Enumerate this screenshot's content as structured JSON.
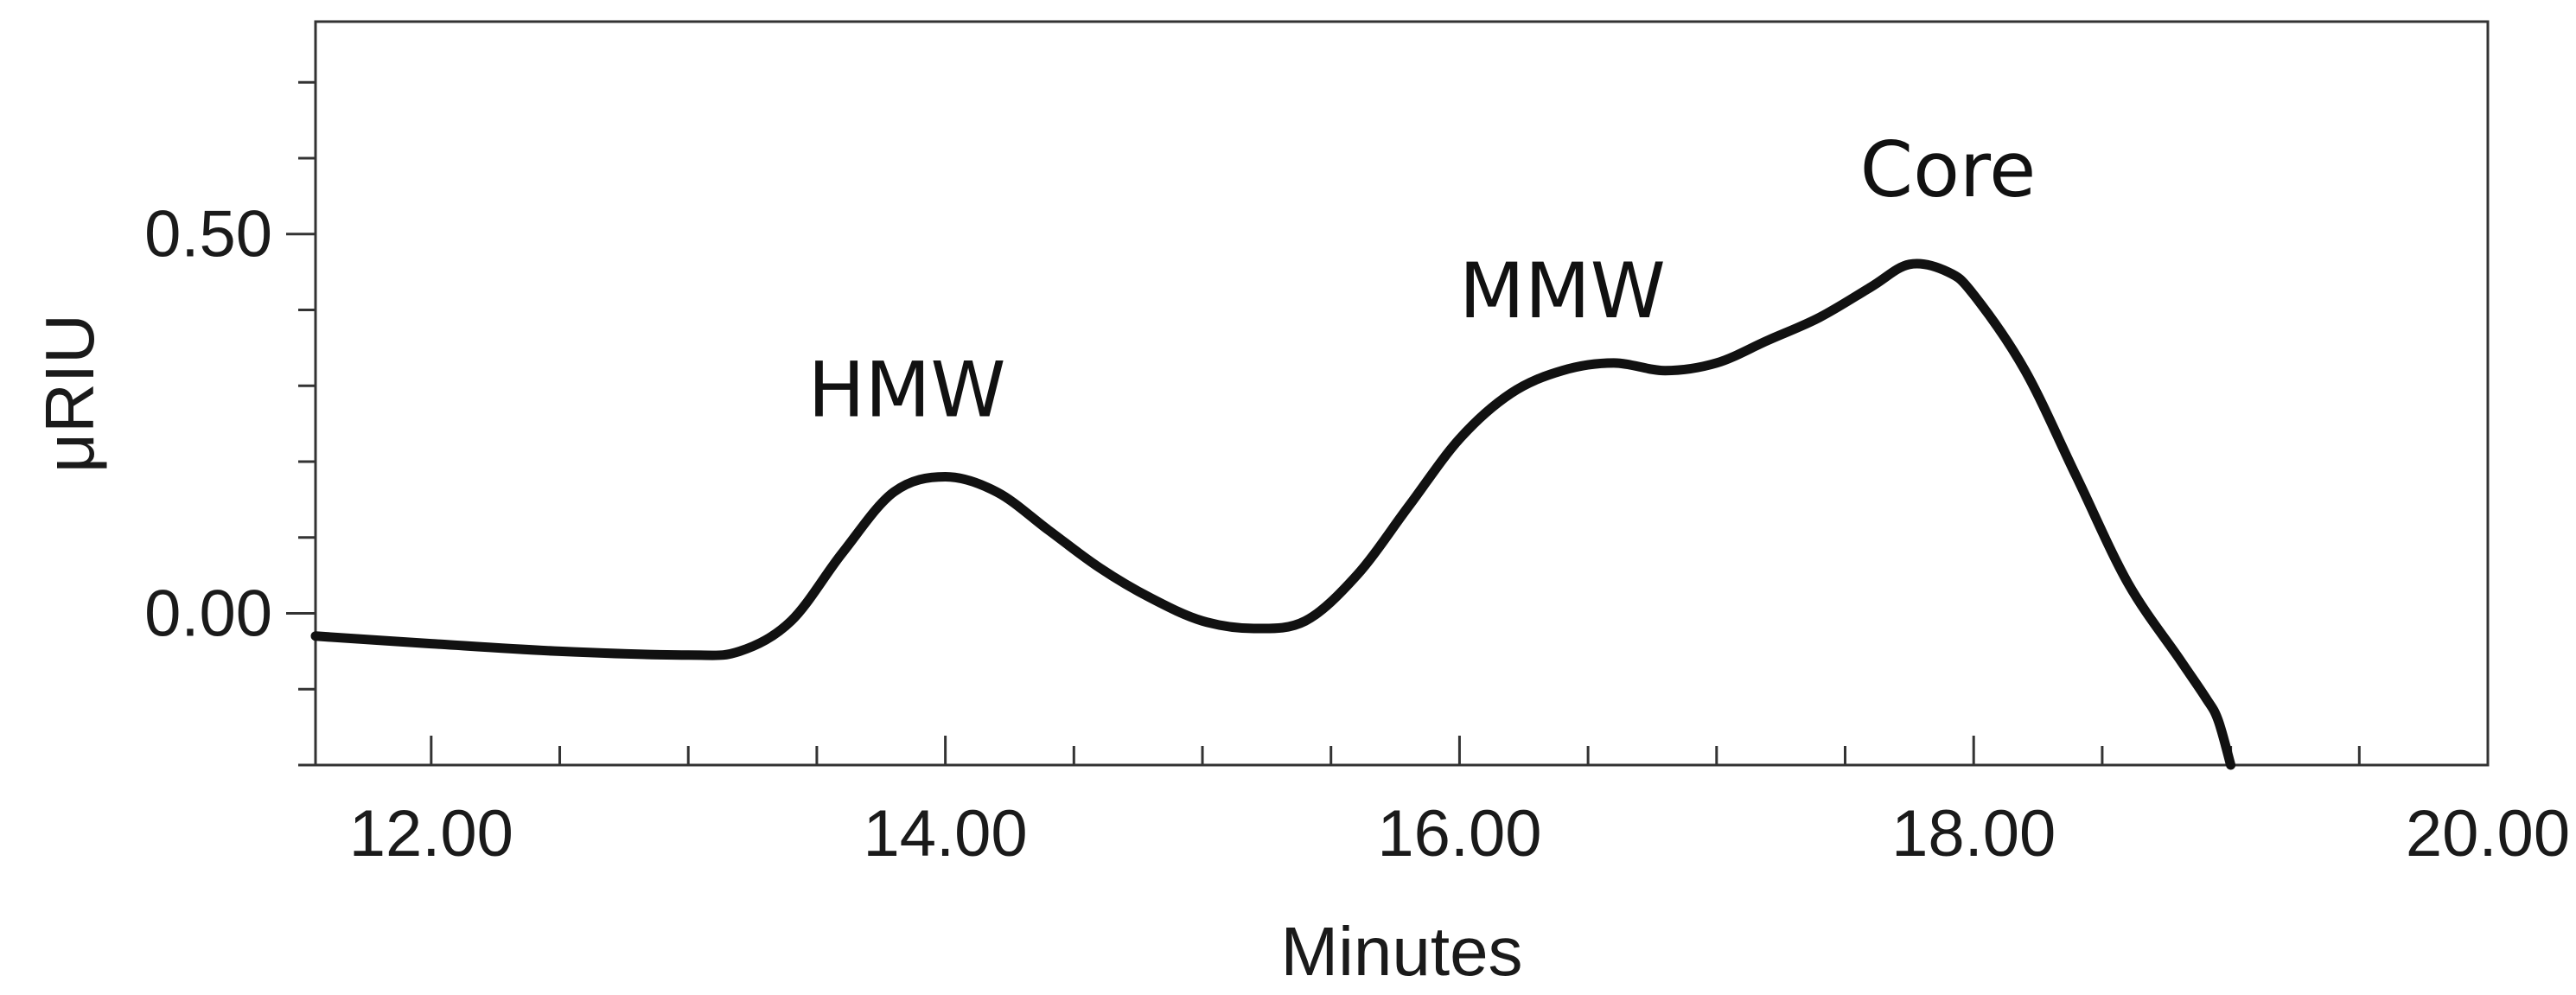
{
  "chart_data": {
    "type": "line",
    "title": "",
    "xlabel": "Minutes",
    "ylabel": "μRIU",
    "xlim": [
      11.55,
      20.0
    ],
    "ylim": [
      -0.2,
      0.78
    ],
    "x_ticks": [
      {
        "value": 12.0,
        "label": "12.00"
      },
      {
        "value": 14.0,
        "label": "14.00"
      },
      {
        "value": 16.0,
        "label": "16.00"
      },
      {
        "value": 18.0,
        "label": "18.00"
      },
      {
        "value": 20.0,
        "label": "20.00"
      }
    ],
    "x_minor_step": 0.5,
    "y_ticks": [
      {
        "value": 0.0,
        "label": "0.00"
      },
      {
        "value": 0.5,
        "label": "0.50"
      }
    ],
    "y_minor_step": 0.1,
    "grid": false,
    "series": [
      {
        "x": [
          11.55,
          12.0,
          12.5,
          13.0,
          13.2,
          13.4,
          13.6,
          13.8,
          14.0,
          14.2,
          14.4,
          14.6,
          14.8,
          15.0,
          15.2,
          15.4,
          15.6,
          15.8,
          16.0,
          16.2,
          16.4,
          16.6,
          16.8,
          17.0,
          17.2,
          17.4,
          17.6,
          17.75,
          17.9,
          18.0,
          18.2,
          18.4,
          18.6,
          18.8,
          18.9,
          18.95,
          19.0
        ],
        "y": [
          -0.03,
          -0.04,
          -0.05,
          -0.055,
          -0.05,
          -0.01,
          0.08,
          0.16,
          0.18,
          0.16,
          0.11,
          0.06,
          0.02,
          -0.01,
          -0.02,
          -0.01,
          0.05,
          0.14,
          0.23,
          0.29,
          0.32,
          0.33,
          0.32,
          0.33,
          0.36,
          0.39,
          0.43,
          0.46,
          0.45,
          0.42,
          0.32,
          0.18,
          0.04,
          -0.06,
          -0.11,
          -0.14,
          -0.2
        ]
      }
    ],
    "annotations": [
      {
        "text": "HMW",
        "x": 13.85,
        "y": 0.26
      },
      {
        "text": "MMW",
        "x": 16.4,
        "y": 0.39
      },
      {
        "text": "Core",
        "x": 17.9,
        "y": 0.55
      }
    ]
  }
}
